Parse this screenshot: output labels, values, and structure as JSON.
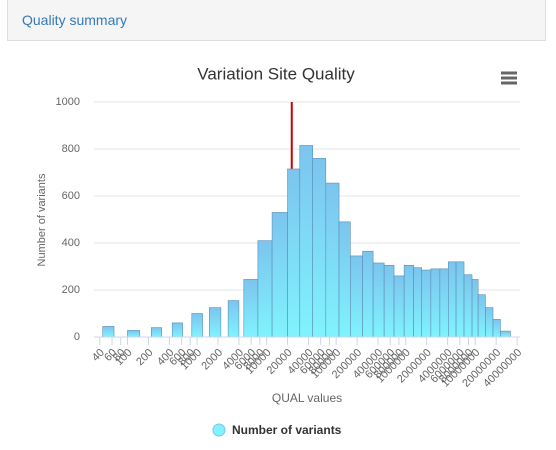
{
  "panel": {
    "title": "Quality summary"
  },
  "chart_data": {
    "type": "histogram",
    "title": "Variation Site Quality",
    "x_label": "QUAL values",
    "y_label": "Number of variants",
    "log_x": true,
    "grid": true,
    "legend": "bottom",
    "series": [
      {
        "name": "Number of variants",
        "gradient": [
          "#7cc4ee",
          "#80f3fe"
        ],
        "stroke": "#5b8fb3",
        "values": [
          45,
          0,
          28,
          0,
          40,
          0,
          60,
          0,
          100,
          0,
          125,
          0,
          155,
          0,
          245,
          410,
          530,
          715,
          815,
          760,
          655,
          490,
          345,
          365,
          315,
          305,
          260,
          305,
          295,
          285,
          290,
          290,
          320,
          320,
          265,
          245,
          180,
          125,
          75,
          25
        ]
      }
    ],
    "bins": [
      44,
      64,
      100,
      150,
      220,
      310,
      440,
      620,
      840,
      1200,
      1500,
      2200,
      2800,
      4000,
      4700,
      7500,
      12000,
      20000,
      30000,
      46000,
      71000,
      110000,
      160000,
      240000,
      340000,
      490000,
      680000,
      950000,
      1300000,
      1700000,
      2300000,
      3100000,
      4100000,
      5300000,
      6900000,
      9000000,
      11000000,
      14000000,
      18000000,
      23000000,
      32000000
    ],
    "plot_line": {
      "value": 23000,
      "color": "#cc0000"
    },
    "xlim": [
      33,
      44000000
    ],
    "xticks": [
      40,
      60,
      80,
      100,
      200,
      400,
      600,
      800,
      1000,
      2000,
      4000,
      6000,
      8000,
      10000,
      20000,
      40000,
      60000,
      80000,
      100000,
      200000,
      400000,
      600000,
      800000,
      1000000,
      2000000,
      4000000,
      6000000,
      8000000,
      10000000,
      20000000,
      40000000
    ],
    "ylim": [
      0,
      1000
    ],
    "yticks": [
      0,
      200,
      400,
      600,
      800,
      1000
    ]
  }
}
